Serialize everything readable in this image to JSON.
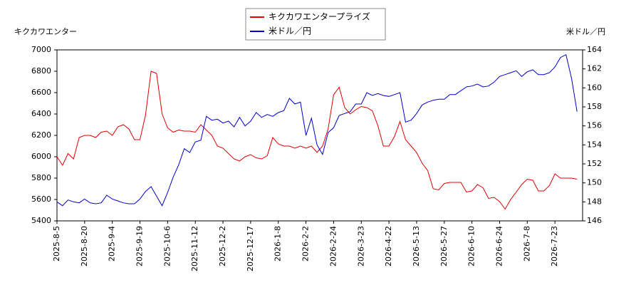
{
  "chart_data": {
    "type": "line",
    "y_label": "キクカワエンター",
    "y2_label": "米ドル／円",
    "categories": [
      "2025-8-5",
      null,
      null,
      null,
      null,
      "2025-8-20",
      null,
      null,
      null,
      null,
      "2025-9-4",
      null,
      null,
      null,
      null,
      "2025-9-19",
      null,
      null,
      null,
      null,
      "2025-10-6",
      null,
      null,
      null,
      null,
      "2025-11-12",
      null,
      null,
      null,
      null,
      "2025-12-2",
      null,
      null,
      null,
      null,
      "2025-12-17",
      null,
      null,
      null,
      null,
      "2026-1-8",
      null,
      null,
      null,
      null,
      "2026-2-2",
      null,
      null,
      null,
      null,
      "2026-2-24",
      null,
      null,
      null,
      null,
      "2026-3-23",
      null,
      null,
      null,
      null,
      "2026-4-22",
      null,
      null,
      null,
      null,
      "2026-5-13",
      null,
      null,
      null,
      null,
      "2026-5-27",
      null,
      null,
      null,
      null,
      "2026-6-10",
      null,
      null,
      null,
      null,
      "2026-6-24",
      null,
      null,
      null,
      null,
      "2026-7-8",
      null,
      null,
      null,
      null,
      "2026-7-23",
      null,
      null,
      null,
      null
    ],
    "series": [
      {
        "name": "キクカワエンタープライズ",
        "color": "#e00000",
        "values": [
          6000,
          5920,
          6030,
          5980,
          6180,
          6200,
          6200,
          6180,
          6230,
          6240,
          6200,
          6280,
          6300,
          6260,
          6160,
          6160,
          6390,
          6800,
          6780,
          6400,
          6270,
          6230,
          6250,
          6240,
          6240,
          6230,
          6300,
          6250,
          6200,
          6100,
          6080,
          6030,
          5980,
          5960,
          6000,
          6020,
          5990,
          5980,
          6010,
          6180,
          6120,
          6100,
          6100,
          6080,
          6100,
          6080,
          6100,
          6040,
          6100,
          6260,
          6580,
          6650,
          6460,
          6400,
          6440,
          6470,
          6460,
          6430,
          6290,
          6100,
          6100,
          6190,
          6330,
          6160,
          6100,
          6040,
          5940,
          5870,
          5700,
          5690,
          5750,
          5760,
          5760,
          5760,
          5670,
          5680,
          5740,
          5710,
          5610,
          5620,
          5580,
          5510,
          5600,
          5670,
          5740,
          5790,
          5780,
          5680,
          5680,
          5730,
          5840,
          5800,
          5800,
          5800,
          5790
        ]
      },
      {
        "name": "米ドル／円",
        "color": "#0000cc",
        "axis": "y2",
        "values": [
          148.0,
          147.6,
          148.2,
          148.0,
          147.9,
          148.3,
          147.9,
          147.8,
          147.9,
          148.7,
          148.3,
          148.1,
          147.9,
          147.8,
          147.8,
          148.3,
          149.1,
          149.6,
          148.6,
          147.6,
          149.0,
          150.6,
          151.9,
          153.6,
          153.2,
          154.3,
          154.5,
          157.0,
          156.6,
          156.7,
          156.3,
          156.5,
          155.9,
          156.9,
          156.0,
          156.5,
          157.4,
          156.9,
          157.2,
          157.0,
          157.4,
          157.6,
          158.9,
          158.3,
          158.5,
          155.0,
          156.8,
          154.0,
          153.0,
          155.3,
          155.8,
          157.1,
          157.3,
          157.5,
          158.3,
          158.3,
          159.5,
          159.2,
          159.4,
          159.2,
          159.1,
          159.3,
          159.5,
          156.4,
          156.6,
          157.3,
          158.2,
          158.5,
          158.7,
          158.8,
          158.8,
          159.3,
          159.3,
          159.7,
          160.1,
          160.2,
          160.4,
          160.1,
          160.2,
          160.6,
          161.2,
          161.4,
          161.6,
          161.8,
          161.2,
          161.7,
          161.9,
          161.4,
          161.4,
          161.6,
          162.2,
          163.2,
          163.5,
          161.0,
          157.5
        ]
      }
    ],
    "ylim": [
      5400,
      7000
    ],
    "yticks": [
      5400,
      5600,
      5800,
      6000,
      6200,
      6400,
      6600,
      6800,
      7000
    ],
    "y2lim": [
      146,
      164
    ],
    "y2ticks": [
      146,
      148,
      150,
      152,
      154,
      156,
      158,
      160,
      162,
      164
    ],
    "legend": "top"
  }
}
